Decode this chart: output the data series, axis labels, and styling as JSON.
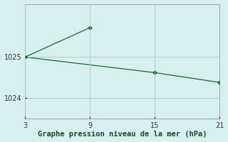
{
  "line1_x": [
    3,
    9
  ],
  "line1_y": [
    1025.0,
    1025.72
  ],
  "line2_x": [
    3,
    15,
    21
  ],
  "line2_y": [
    1025.0,
    1024.62,
    1024.38
  ],
  "line_color": "#1a6b2a",
  "marker": "D",
  "marker_size": 2.5,
  "xlim": [
    3,
    21
  ],
  "ylim": [
    1023.5,
    1026.3
  ],
  "xticks": [
    3,
    9,
    15,
    21
  ],
  "yticks": [
    1024,
    1025
  ],
  "xlabel": "Graphe pression niveau de la mer (hPa)",
  "background_color": "#d8f0f0",
  "grid_color": "#b0c8c8",
  "title": ""
}
